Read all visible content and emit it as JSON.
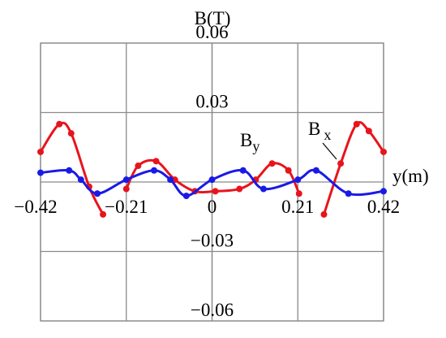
{
  "chart_data": {
    "type": "line",
    "y_label": "B(T)",
    "x_label": "y(m)",
    "xlim": [
      -0.42,
      0.42
    ],
    "xticks": [
      {
        "value": -0.42,
        "label": "−0.42"
      },
      {
        "value": -0.21,
        "label": "−0.21"
      },
      0,
      0.21,
      0.42
    ],
    "ylim": [
      -0.06,
      0.06
    ],
    "yticks": [
      {
        "value": -0.06,
        "label": "−0.06"
      },
      {
        "value": -0.03,
        "label": "−0.03"
      },
      0.03,
      0.06
    ],
    "grid": true,
    "series": [
      {
        "name": "Bx",
        "color": "#e8141c",
        "x": [
          -0.42,
          -0.374,
          -0.345,
          -0.301,
          -0.267,
          -0.24,
          -0.21,
          -0.181,
          -0.137,
          -0.091,
          -0.042,
          0.008,
          0.067,
          0.107,
          0.147,
          0.187,
          0.213,
          0.245,
          0.274,
          0.315,
          0.354,
          0.384,
          0.42
        ],
        "values": [
          0.013,
          0.025,
          0.021,
          -0.002,
          -0.014,
          null,
          -0.003,
          0.007,
          0.009,
          0.001,
          -0.004,
          -0.004,
          -0.003,
          0.001,
          0.008,
          0.005,
          -0.005,
          null,
          -0.014,
          0.008,
          0.025,
          0.022,
          0.013
        ]
      },
      {
        "name": "By",
        "color": "#1a1ae6",
        "x": [
          -0.42,
          -0.35,
          -0.321,
          -0.281,
          -0.21,
          -0.142,
          -0.102,
          -0.063,
          0,
          0.076,
          0.126,
          0.21,
          0.255,
          0.334,
          0.42
        ],
        "values": [
          0.004,
          0.005,
          0.001,
          -0.005,
          0.001,
          0.005,
          0.001,
          -0.006,
          0.001,
          0.005,
          -0.003,
          0.001,
          0.005,
          -0.005,
          -0.004
        ]
      }
    ],
    "annotations": [
      {
        "text": "B",
        "subscript": "y"
      },
      {
        "text": "B",
        "subscript": "x"
      }
    ]
  }
}
